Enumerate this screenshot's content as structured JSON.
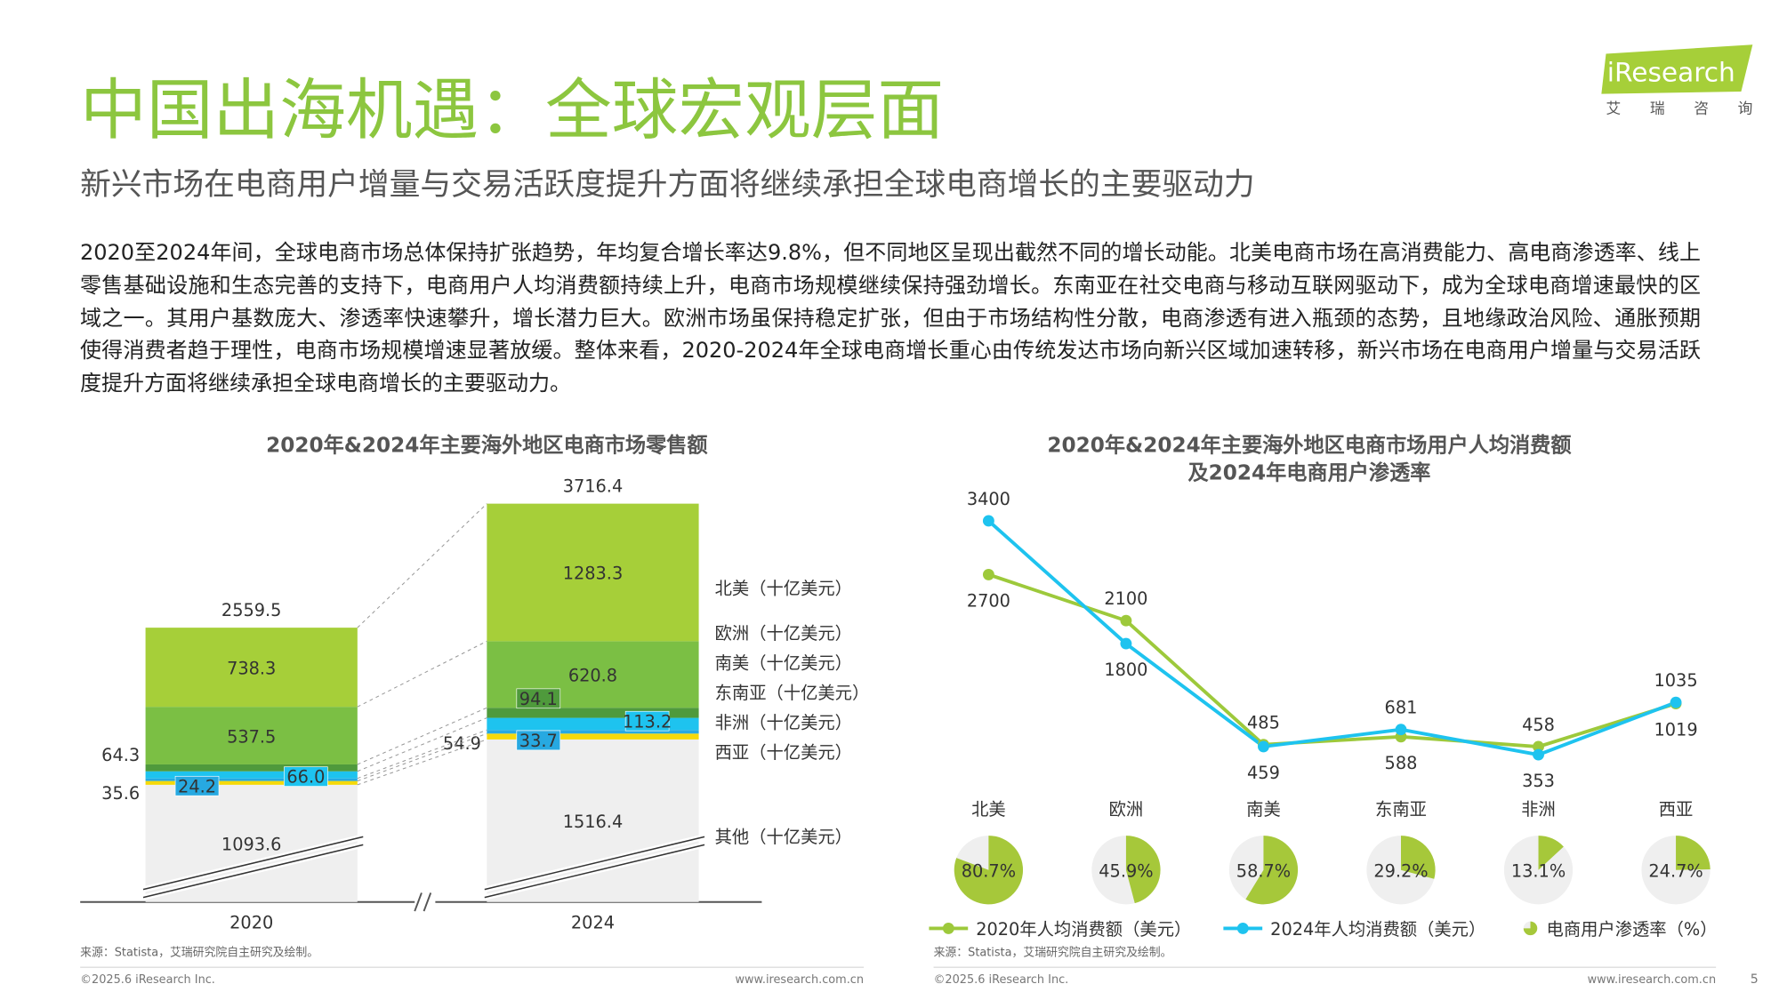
{
  "header": {
    "title": "中国出海机遇：全球宏观层面",
    "subtitle": "新兴市场在电商用户增量与交易活跃度提升方面将继续承担全球电商增长的主要驱动力",
    "logo": "iResearch",
    "logo_sub": "艾 瑞 咨 询"
  },
  "body": "2020至2024年间，全球电商市场总体保持扩张趋势，年均复合增长率达9.8%，但不同地区呈现出截然不同的增长动能。北美电商市场在高消费能力、高电商渗透率、线上零售基础设施和生态完善的支持下，电商用户人均消费额持续上升，电商市场规模继续保持强劲增长。东南亚在社交电商与移动互联网驱动下，成为全球电商增速最快的区域之一。其用户基数庞大、渗透率快速攀升，增长潜力巨大。欧洲市场虽保持稳定扩张，但由于市场结构性分散，电商渗透有进入瓶颈的态势，且地缘政治风险、通胀预期使得消费者趋于理性，电商市场规模增速显著放缓。整体来看，2020-2024年全球电商增长重心由传统发达市场向新兴区域加速转移，新兴市场在电商用户增量与交易活跃度提升方面将继续承担全球电商增长的主要驱动力。",
  "chart_data": [
    {
      "type": "bar",
      "stacked": true,
      "title": "2020年&2024年主要海外地区电商市场零售额",
      "categories": [
        "2020",
        "2024"
      ],
      "series": [
        {
          "name": "其他（十亿美元）",
          "color": "#efefef",
          "values": [
            1093.6,
            1516.4
          ]
        },
        {
          "name": "西亚（十亿美元）",
          "color": "#f5d90a",
          "values": [
            35.6,
            54.9
          ]
        },
        {
          "name": "非洲（十亿美元）",
          "color": "#27a9e1",
          "values": [
            24.2,
            33.7
          ]
        },
        {
          "name": "东南亚（十亿美元）",
          "color": "#1ec3ef",
          "values": [
            66.0,
            113.2
          ],
          "value_labels": [
            "66.0",
            "113.2"
          ]
        },
        {
          "name": "南美（十亿美元）",
          "color": "#4f9a3c",
          "values": [
            64.3,
            94.1
          ]
        },
        {
          "name": "欧洲（十亿美元）",
          "color": "#7bbf44",
          "values": [
            537.5,
            620.8
          ]
        },
        {
          "name": "北美（十亿美元）",
          "color": "#a6cf39",
          "values": [
            738.3,
            1283.3
          ]
        }
      ],
      "totals": [
        2559.5,
        3716.4
      ],
      "source": "来源：Statista，艾瑞研究院自主研究及绘制。"
    },
    {
      "type": "line",
      "title": [
        "2020年&2024年主要海外地区电商市场用户人均消费额",
        "及2024年电商用户渗透率"
      ],
      "categories": [
        "北美",
        "欧洲",
        "南美",
        "东南亚",
        "非洲",
        "西亚"
      ],
      "series": [
        {
          "name": "2020年人均消费额（美元）",
          "color": "#9dc93b",
          "values": [
            2700,
            2100,
            485,
            588,
            458,
            1019
          ]
        },
        {
          "name": "2024年人均消费额（美元）",
          "color": "#1ec3ef",
          "values": [
            3400,
            1800,
            459,
            681,
            353,
            1035
          ]
        },
        {
          "name": "电商用户渗透率（%）",
          "type": "pie",
          "color": "#a6c83a",
          "values": [
            80.7,
            45.9,
            58.7,
            29.2,
            13.1,
            24.7
          ],
          "value_labels": [
            "80.7%",
            "45.9%",
            "58.7%",
            "29.2%",
            "13.1%",
            "24.7%"
          ]
        }
      ],
      "source": "来源：Statista，艾瑞研究院自主研究及绘制。"
    }
  ],
  "footer": {
    "copyright": "©2025.6 iResearch Inc.",
    "website": "www.iresearch.com.cn",
    "page": 5
  }
}
